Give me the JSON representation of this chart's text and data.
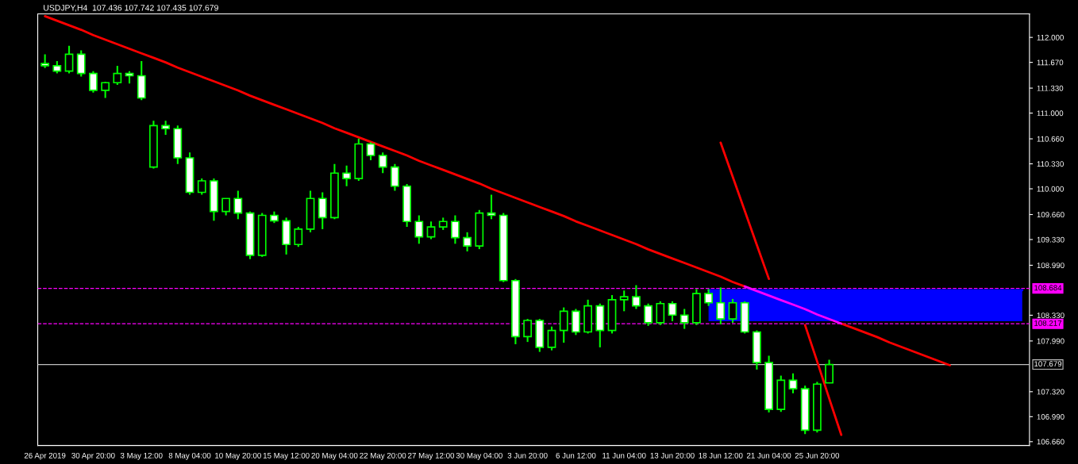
{
  "chart_data": {
    "type": "candlestick",
    "title": "USDJPY,H4  107.436 107.742 107.435 107.679",
    "color": "#00ff00",
    "categories": [
      "26 Apr 2019",
      null,
      null,
      null,
      "30 Apr 20:00",
      null,
      null,
      null,
      "3 May 12:00",
      null,
      null,
      null,
      "8 May 04:00",
      null,
      null,
      null,
      "10 May 20:00",
      null,
      null,
      null,
      "15 May 12:00",
      null,
      null,
      null,
      "20 May 04:00",
      null,
      null,
      null,
      "22 May 20:00",
      null,
      null,
      null,
      "27 May 12:00",
      null,
      null,
      null,
      "30 May 04:00",
      null,
      null,
      null,
      "3 Jun 20:00",
      null,
      null,
      null,
      "6 Jun 12:00",
      null,
      null,
      null,
      "11 Jun 04:00",
      null,
      null,
      null,
      "13 Jun 20:00",
      null,
      null,
      null,
      "18 Jun 12:00",
      null,
      null,
      null,
      "21 Jun 04:00",
      null,
      null,
      null,
      "25 Jun 20:00",
      null,
      null,
      null,
      null,
      null,
      null,
      null,
      null,
      null,
      null,
      null,
      null,
      null,
      null,
      null,
      null,
      null
    ],
    "ohlc": [
      [
        111.655,
        111.777,
        111.595,
        111.625
      ],
      [
        111.625,
        111.686,
        111.524,
        111.554
      ],
      [
        111.554,
        111.889,
        111.524,
        111.777
      ],
      [
        111.777,
        111.828,
        111.483,
        111.524
      ],
      [
        111.524,
        111.554,
        111.27,
        111.301
      ],
      [
        111.301,
        111.412,
        111.2,
        111.402
      ],
      [
        111.402,
        111.625,
        111.372,
        111.524
      ],
      [
        111.524,
        111.554,
        111.392,
        111.493
      ],
      [
        111.493,
        111.686,
        111.17,
        111.2
      ],
      [
        110.288,
        110.9,
        110.268,
        110.835
      ],
      [
        110.835,
        110.9,
        110.713,
        110.794
      ],
      [
        110.794,
        110.835,
        110.328,
        110.409
      ],
      [
        110.409,
        110.48,
        109.923,
        109.953
      ],
      [
        109.953,
        110.136,
        109.923,
        110.105
      ],
      [
        110.105,
        110.136,
        109.578,
        109.7
      ],
      [
        109.7,
        109.872,
        109.649,
        109.872
      ],
      [
        109.872,
        109.973,
        109.599,
        109.68
      ],
      [
        109.68,
        109.7,
        109.072,
        109.122
      ],
      [
        109.122,
        109.68,
        109.101,
        109.649
      ],
      [
        109.649,
        109.7,
        109.548,
        109.578
      ],
      [
        109.578,
        109.619,
        109.132,
        109.264
      ],
      [
        109.264,
        109.497,
        109.233,
        109.467
      ],
      [
        109.467,
        109.973,
        109.426,
        109.872
      ],
      [
        109.872,
        109.953,
        109.467,
        109.619
      ],
      [
        109.619,
        110.328,
        109.599,
        110.207
      ],
      [
        110.207,
        110.308,
        110.034,
        110.136
      ],
      [
        110.136,
        110.662,
        110.105,
        110.592
      ],
      [
        110.592,
        110.612,
        110.378,
        110.44
      ],
      [
        110.44,
        110.48,
        110.207,
        110.288
      ],
      [
        110.288,
        110.328,
        109.973,
        110.034
      ],
      [
        110.034,
        110.064,
        109.497,
        109.568
      ],
      [
        109.568,
        109.649,
        109.274,
        109.365
      ],
      [
        109.365,
        109.568,
        109.335,
        109.497
      ],
      [
        109.497,
        109.619,
        109.457,
        109.568
      ],
      [
        109.568,
        109.649,
        109.274,
        109.355
      ],
      [
        109.355,
        109.426,
        109.173,
        109.244
      ],
      [
        109.244,
        109.72,
        109.203,
        109.68
      ],
      [
        109.68,
        109.923,
        109.599,
        109.649
      ],
      [
        109.649,
        109.68,
        108.768,
        108.788
      ],
      [
        108.788,
        108.808,
        107.947,
        108.048
      ],
      [
        108.048,
        108.281,
        107.977,
        108.261
      ],
      [
        108.261,
        108.281,
        107.846,
        107.906
      ],
      [
        107.906,
        108.18,
        107.866,
        108.129
      ],
      [
        108.129,
        108.433,
        107.967,
        108.383
      ],
      [
        108.383,
        108.413,
        108.069,
        108.109
      ],
      [
        108.109,
        108.535,
        108.089,
        108.453
      ],
      [
        108.453,
        108.484,
        107.906,
        108.129
      ],
      [
        108.129,
        108.596,
        108.089,
        108.535
      ],
      [
        108.535,
        108.656,
        108.383,
        108.575
      ],
      [
        108.575,
        108.727,
        108.413,
        108.453
      ],
      [
        108.453,
        108.484,
        108.19,
        108.231
      ],
      [
        108.231,
        108.514,
        108.2,
        108.484
      ],
      [
        108.484,
        108.514,
        108.251,
        108.332
      ],
      [
        108.332,
        108.413,
        108.15,
        108.231
      ],
      [
        108.231,
        108.676,
        108.2,
        108.616
      ],
      [
        108.616,
        108.676,
        108.453,
        108.494
      ],
      [
        108.494,
        108.697,
        108.21,
        108.281
      ],
      [
        108.281,
        108.545,
        108.23,
        108.494
      ],
      [
        108.494,
        108.514,
        108.089,
        108.109
      ],
      [
        108.109,
        108.129,
        107.612,
        107.704
      ],
      [
        107.704,
        107.795,
        107.045,
        107.086
      ],
      [
        107.086,
        107.532,
        107.055,
        107.471
      ],
      [
        107.471,
        107.562,
        107.299,
        107.359
      ],
      [
        107.359,
        107.4,
        106.761,
        106.812
      ],
      [
        106.812,
        107.45,
        106.781,
        107.42
      ],
      [
        107.436,
        107.742,
        107.435,
        107.679
      ],
      null,
      null,
      null,
      null,
      null,
      null,
      null,
      null,
      null,
      null,
      null,
      null,
      null,
      null,
      null,
      null
    ],
    "series": [
      {
        "type": "line",
        "color": "#0000ff",
        "upper": [
          null,
          null,
          null,
          null,
          null,
          null,
          null,
          null,
          null,
          null,
          null,
          null,
          null,
          null,
          null,
          null,
          null,
          null,
          null,
          null,
          null,
          null,
          null,
          null,
          null,
          null,
          null,
          null,
          null,
          null,
          null,
          null,
          null,
          null,
          null,
          null,
          null,
          null,
          null,
          null,
          null,
          null,
          null,
          null,
          null,
          null,
          null,
          null,
          null,
          null,
          null,
          null,
          null,
          null,
          null,
          108.66,
          108.66,
          108.66,
          108.66,
          108.66,
          108.66,
          108.66,
          108.66,
          108.66,
          108.66,
          108.66,
          108.66,
          108.66,
          108.66,
          108.66,
          108.66,
          108.66,
          108.66,
          108.66,
          108.66,
          108.66,
          108.66,
          108.66,
          108.66,
          108.66,
          108.66,
          108.66
        ],
        "values": [
          null,
          null,
          null,
          null,
          null,
          null,
          null,
          null,
          null,
          null,
          null,
          null,
          null,
          null,
          null,
          null,
          null,
          null,
          null,
          null,
          null,
          null,
          null,
          null,
          null,
          null,
          null,
          null,
          null,
          null,
          null,
          null,
          null,
          null,
          null,
          null,
          null,
          null,
          null,
          null,
          null,
          null,
          null,
          null,
          null,
          null,
          null,
          null,
          null,
          null,
          null,
          null,
          null,
          null,
          null,
          108.66,
          108.66,
          108.66,
          108.66,
          108.66,
          108.66,
          108.66,
          108.66,
          108.66,
          108.66,
          108.66,
          108.66,
          108.66,
          108.66,
          108.66,
          108.66,
          108.66,
          108.66,
          108.66,
          108.66,
          108.66,
          108.66,
          108.66,
          108.66,
          108.66,
          108.66,
          108.66
        ],
        "lower": [
          null,
          null,
          null,
          null,
          null,
          null,
          null,
          null,
          null,
          null,
          null,
          null,
          null,
          null,
          null,
          null,
          null,
          null,
          null,
          null,
          null,
          null,
          null,
          null,
          null,
          null,
          null,
          null,
          null,
          null,
          null,
          null,
          null,
          null,
          null,
          null,
          null,
          null,
          null,
          null,
          null,
          null,
          null,
          null,
          null,
          null,
          null,
          null,
          null,
          null,
          null,
          null,
          null,
          null,
          null,
          108.25,
          108.25,
          108.25,
          108.25,
          108.25,
          108.25,
          108.25,
          108.25,
          108.25,
          108.25,
          108.25,
          108.25,
          108.25,
          108.25,
          108.25,
          108.25,
          108.25,
          108.25,
          108.25,
          108.25,
          108.25,
          108.25,
          108.25,
          108.25,
          108.25,
          108.25,
          108.25
        ]
      },
      {
        "type": "line",
        "color": "#ff0000",
        "values": [
          112.28,
          112.22,
          112.16,
          112.1,
          112.03,
          111.97,
          111.91,
          111.85,
          111.79,
          111.73,
          111.67,
          111.6,
          111.54,
          111.48,
          111.42,
          111.36,
          111.3,
          111.23,
          111.17,
          111.11,
          111.05,
          110.99,
          110.93,
          110.87,
          110.8,
          110.74,
          110.68,
          110.62,
          110.56,
          110.5,
          110.44,
          110.37,
          110.31,
          110.25,
          110.19,
          110.13,
          110.07,
          110.0,
          109.94,
          109.88,
          109.82,
          109.76,
          109.7,
          109.64,
          109.57,
          109.51,
          109.45,
          109.39,
          109.33,
          109.27,
          109.2,
          109.14,
          109.08,
          109.02,
          108.96,
          108.9,
          108.84,
          108.77,
          108.71,
          null,
          null,
          null,
          null,
          null,
          null,
          null,
          108.22,
          108.16,
          108.1,
          108.04,
          107.97,
          107.91,
          107.85,
          107.79,
          107.73,
          107.67,
          null,
          null,
          null,
          null,
          null,
          null
        ]
      },
      {
        "type": "line",
        "color": "#ff00ff",
        "values": [
          null,
          null,
          null,
          null,
          null,
          null,
          null,
          null,
          null,
          null,
          null,
          null,
          null,
          null,
          null,
          null,
          null,
          null,
          null,
          null,
          null,
          null,
          null,
          null,
          null,
          null,
          null,
          null,
          null,
          null,
          null,
          null,
          null,
          null,
          null,
          null,
          null,
          null,
          null,
          null,
          null,
          null,
          null,
          null,
          null,
          null,
          null,
          null,
          null,
          null,
          null,
          null,
          null,
          null,
          null,
          null,
          null,
          null,
          108.71,
          108.65,
          108.59,
          108.53,
          108.47,
          108.41,
          108.34,
          108.28,
          108.22,
          null,
          null,
          null,
          null,
          null,
          null,
          null,
          null,
          null,
          null,
          null,
          null,
          null,
          null,
          null
        ]
      },
      {
        "type": "line",
        "color": "#ff0000",
        "values": [
          null,
          null,
          null,
          null,
          null,
          null,
          null,
          null,
          null,
          null,
          null,
          null,
          null,
          null,
          null,
          null,
          null,
          null,
          null,
          null,
          null,
          null,
          null,
          null,
          null,
          null,
          null,
          null,
          null,
          null,
          null,
          null,
          null,
          null,
          null,
          null,
          null,
          null,
          null,
          null,
          null,
          null,
          null,
          null,
          null,
          null,
          null,
          null,
          null,
          null,
          null,
          null,
          null,
          null,
          null,
          null,
          110.61,
          110.16,
          109.71,
          109.26,
          108.81,
          null,
          null,
          null,
          null,
          null,
          null,
          null,
          null,
          null,
          null,
          null,
          null,
          null,
          null,
          null,
          null,
          null,
          null,
          null,
          null,
          null
        ]
      },
      {
        "type": "line",
        "color": "#ff0000",
        "values": [
          null,
          null,
          null,
          null,
          null,
          null,
          null,
          null,
          null,
          null,
          null,
          null,
          null,
          null,
          null,
          null,
          null,
          null,
          null,
          null,
          null,
          null,
          null,
          null,
          null,
          null,
          null,
          null,
          null,
          null,
          null,
          null,
          null,
          null,
          null,
          null,
          null,
          null,
          null,
          null,
          null,
          null,
          null,
          null,
          null,
          null,
          null,
          null,
          null,
          null,
          null,
          null,
          null,
          null,
          null,
          null,
          null,
          null,
          null,
          null,
          null,
          null,
          null,
          108.2,
          107.72,
          107.23,
          106.75,
          null,
          null,
          null,
          null,
          null,
          null,
          null,
          null,
          null,
          null,
          null,
          null,
          null,
          null,
          null
        ]
      }
    ],
    "ref_lines": [
      {
        "axis": "y",
        "value": 108.684,
        "label": "108.684",
        "color": "#ff00ff",
        "line_style": "dashed"
      },
      {
        "axis": "y",
        "value": 108.217,
        "label": "108.217",
        "color": "#ff00ff",
        "line_style": "dashed"
      },
      {
        "axis": "y",
        "value": 107.679,
        "label": "107.679",
        "color": "#c0c0c0",
        "line_style": "solid"
      }
    ],
    "ylim": [
      106.61,
      112.31
    ],
    "yticks": [
      {
        "value": 106.66,
        "label": "106.660"
      },
      {
        "value": 106.99,
        "label": "106.990"
      },
      {
        "value": 107.32,
        "label": "107.320"
      },
      {
        "value": 107.99,
        "label": "107.990"
      },
      {
        "value": 108.33,
        "label": "108.330"
      },
      {
        "value": 108.99,
        "label": "108.990"
      },
      {
        "value": 109.33,
        "label": "109.330"
      },
      {
        "value": 109.66,
        "label": "109.660"
      },
      {
        "value": 110.0,
        "label": "110.000"
      },
      {
        "value": 110.33,
        "label": "110.330"
      },
      {
        "value": 110.66,
        "label": "110.660"
      },
      {
        "value": 111.0,
        "label": "111.000"
      },
      {
        "value": 111.33,
        "label": "111.330"
      },
      {
        "value": 111.67,
        "label": "111.670"
      },
      {
        "value": 112.0,
        "label": "112.000"
      }
    ],
    "grid": false
  }
}
